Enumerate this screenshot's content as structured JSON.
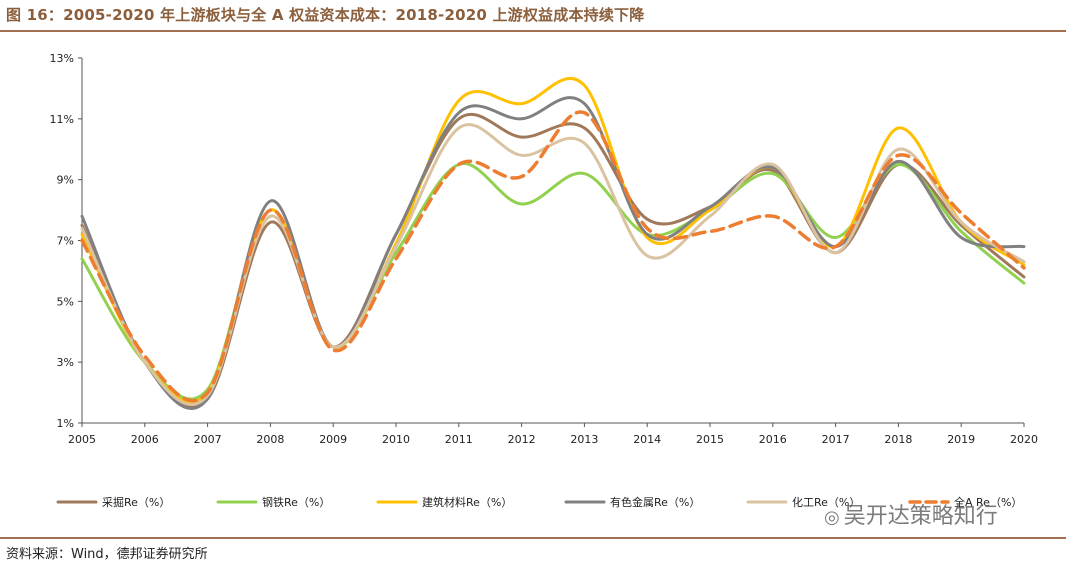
{
  "header": {
    "title": "图 16：2005-2020 年上游板块与全 A 权益资本成本：2018-2020 上游权益成本持续下降"
  },
  "footer": {
    "source": "资料来源：Wind，德邦证券研究所"
  },
  "watermark": {
    "text": "吴开达策略知行",
    "icon": "wechat-icon"
  },
  "chart_data": {
    "type": "line",
    "title": "",
    "xlabel": "",
    "ylabel": "",
    "x": [
      "2005",
      "2006",
      "2007",
      "2008",
      "2009",
      "2010",
      "2011",
      "2012",
      "2013",
      "2014",
      "2015",
      "2016",
      "2017",
      "2018",
      "2019",
      "2020"
    ],
    "ylim": [
      1,
      13
    ],
    "yticks": [
      1,
      3,
      5,
      7,
      9,
      11,
      13
    ],
    "ytick_labels": [
      "1%",
      "3%",
      "5%",
      "7%",
      "9%",
      "11%",
      "13%"
    ],
    "grid": false,
    "legend_position": "bottom",
    "series": [
      {
        "name": "采掘Re（%）",
        "color": "#A0785A",
        "dashed": false,
        "values": [
          7.5,
          3.0,
          1.8,
          7.6,
          3.5,
          7.2,
          11.0,
          10.4,
          10.7,
          7.7,
          8.1,
          9.3,
          6.6,
          9.5,
          7.5,
          5.8
        ]
      },
      {
        "name": "钢铁Re（%）",
        "color": "#92D050",
        "dashed": false,
        "values": [
          6.4,
          3.0,
          2.1,
          8.0,
          3.5,
          6.6,
          9.5,
          8.2,
          9.2,
          7.2,
          8.0,
          9.2,
          7.1,
          9.5,
          7.3,
          5.6
        ]
      },
      {
        "name": "建筑材料Re（%）",
        "color": "#FFC000",
        "dashed": false,
        "values": [
          7.2,
          3.0,
          2.0,
          8.0,
          3.5,
          6.9,
          11.6,
          11.5,
          12.1,
          7.1,
          8.0,
          9.4,
          6.8,
          10.7,
          7.6,
          6.2
        ]
      },
      {
        "name": "有色金属Re（%）",
        "color": "#808080",
        "dashed": false,
        "values": [
          7.8,
          3.0,
          1.8,
          8.3,
          3.5,
          7.2,
          11.2,
          11.0,
          11.5,
          7.2,
          8.1,
          9.4,
          6.8,
          9.6,
          7.1,
          6.8
        ]
      },
      {
        "name": "化工Re（%）",
        "color": "#D9C3A0",
        "dashed": false,
        "values": [
          7.4,
          3.0,
          1.9,
          7.8,
          3.5,
          6.8,
          10.7,
          9.8,
          10.2,
          6.5,
          7.8,
          9.5,
          6.6,
          10.0,
          7.6,
          6.3
        ]
      },
      {
        "name": "全A Re（%）",
        "color": "#ED7D31",
        "dashed": true,
        "values": [
          7.0,
          3.2,
          2.0,
          8.0,
          3.4,
          6.4,
          9.5,
          9.1,
          11.2,
          7.4,
          7.3,
          7.8,
          6.8,
          9.8,
          7.9,
          6.1
        ]
      }
    ]
  }
}
